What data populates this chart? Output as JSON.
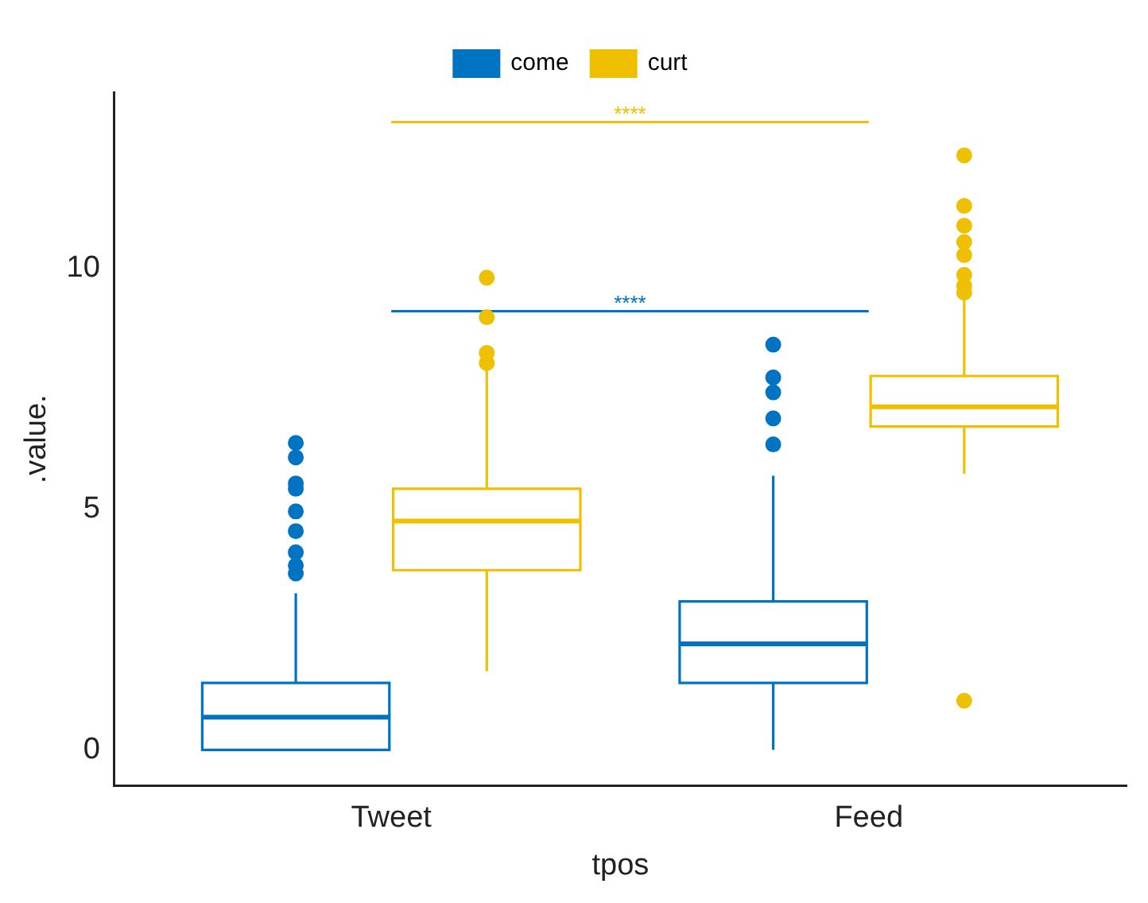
{
  "chart_data": {
    "type": "box",
    "xlabel": "tpos",
    "ylabel": ".value.",
    "categories": [
      "Tweet",
      "Feed"
    ],
    "ylim": [
      -0.75,
      13.65
    ],
    "yticks": [
      0,
      5,
      10
    ],
    "grid": false,
    "legend": "top",
    "marker": "circle",
    "series": [
      {
        "name": "come",
        "color": "#0073c2",
        "boxes": [
          {
            "low": 0,
            "q1": 0,
            "median": 0.68,
            "q3": 1.39,
            "high": 3.25,
            "outliers": [
              6.37,
              6.07,
              5.53,
              5.42,
              4.95,
              4.54,
              4.1,
              3.83,
              3.66
            ]
          },
          {
            "low": 0,
            "q1": 1.39,
            "median": 2.2,
            "q3": 3.08,
            "high": 5.69,
            "outliers": [
              8.41,
              7.73,
              7.42,
              6.88,
              6.34
            ]
          }
        ]
      },
      {
        "name": "curt",
        "color": "#efc000",
        "boxes": [
          {
            "low": 1.63,
            "q1": 3.73,
            "median": 4.75,
            "q3": 5.42,
            "high": 7.9,
            "outliers": [
              9.8,
              8.98,
              8.24,
              8.03
            ]
          },
          {
            "low": 5.73,
            "q1": 6.71,
            "median": 7.12,
            "q3": 7.76,
            "high": 9.36,
            "outliers": [
              12.34,
              11.29,
              10.88,
              10.54,
              10.27,
              9.86,
              9.63,
              9.49,
              1.02
            ]
          }
        ]
      }
    ],
    "annotations": [
      "****",
      "****"
    ]
  }
}
